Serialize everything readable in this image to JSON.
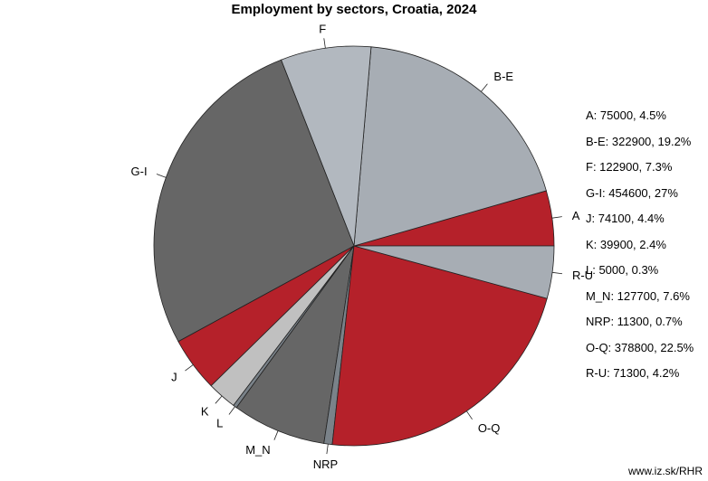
{
  "chart_data": {
    "type": "pie",
    "title": "Employment by sectors, Croatia, 2024",
    "direction": "counterclockwise",
    "start_angle": "3 o'clock",
    "slices": [
      {
        "label": "A",
        "value": 75000,
        "percent": "4.5%",
        "color": "#b5212a"
      },
      {
        "label": "B-E",
        "value": 322900,
        "percent": "19.2%",
        "color": "#a7adb4"
      },
      {
        "label": "F",
        "value": 122900,
        "percent": "7.3%",
        "color": "#b2b8bf"
      },
      {
        "label": "G-I",
        "value": 454600,
        "percent": "27%",
        "color": "#666666"
      },
      {
        "label": "J",
        "value": 74100,
        "percent": "4.4%",
        "color": "#b5212a"
      },
      {
        "label": "K",
        "value": 39900,
        "percent": "2.4%",
        "color": "#c0c0c0"
      },
      {
        "label": "L",
        "value": 5000,
        "percent": "0.3%",
        "color": "#7a8289"
      },
      {
        "label": "M_N",
        "value": 127700,
        "percent": "7.6%",
        "color": "#666666"
      },
      {
        "label": "NRP",
        "value": 11300,
        "percent": "0.7%",
        "color": "#7a8289"
      },
      {
        "label": "O-Q",
        "value": 378800,
        "percent": "22.5%",
        "color": "#b5212a"
      },
      {
        "label": "R-U",
        "value": 71300,
        "percent": "4.2%",
        "color": "#a7adb4"
      }
    ],
    "legend": [
      "A: 75000, 4.5%",
      "B-E: 322900, 19.2%",
      "F: 122900, 7.3%",
      "G-I: 454600, 27%",
      "J: 74100, 4.4%",
      "K: 39900, 2.4%",
      "L: 5000, 0.3%",
      "M_N: 127700, 7.6%",
      "NRP: 11300, 0.7%",
      "O-Q: 378800, 22.5%",
      "R-U: 71300, 4.2%"
    ],
    "legend_placement": "right"
  },
  "source": "www.iz.sk/RHR"
}
